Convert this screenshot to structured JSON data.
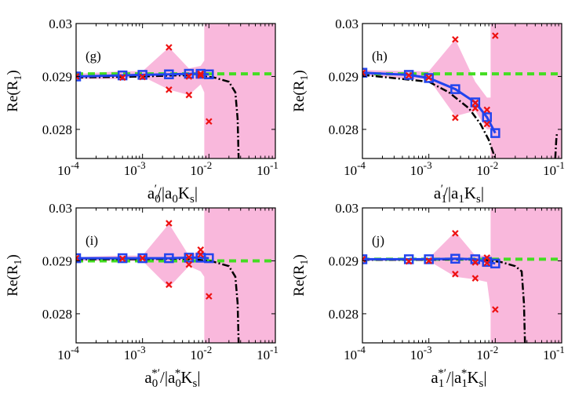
{
  "colors": {
    "band": "#f9b8dc",
    "reference": "#44dd22",
    "fit": "#2244ee",
    "samples": "#ee1111",
    "trend": "#000000"
  },
  "chart_data": [
    {
      "type": "line",
      "panel_label": "(g)",
      "xscale": "log",
      "xlim": [
        0.0001,
        0.1
      ],
      "xticks": [
        {
          "base": "10",
          "exp": "-4"
        },
        {
          "base": "10",
          "exp": "-3"
        },
        {
          "base": "10",
          "exp": "-2"
        },
        {
          "base": "10",
          "exp": "-1"
        }
      ],
      "yticks": [
        "0.03",
        "0.029",
        "0.028"
      ],
      "ytick_values": [
        0.03,
        0.029,
        0.028
      ],
      "ylim": [
        0.02745,
        0.03
      ],
      "ylabel": {
        "main": "Re(R",
        "sub": "1",
        "tail": ")"
      },
      "xlabel": {
        "numerator": "a",
        "num_sub": "0",
        "num_sup": "′",
        "denominator": "/|a",
        "den_sub": "0",
        "den_tail": "K",
        "den_tail_sub": "s",
        "closing": "|"
      },
      "reference_value": 0.02905,
      "band": {
        "x": [
          0.0001,
          0.0005,
          0.001,
          0.0025,
          0.005,
          0.0075,
          0.0085,
          0.0085,
          0.1,
          0.1,
          0.0085,
          0.0085,
          0.0075,
          0.005,
          0.0025,
          0.001,
          0.0005,
          0.0001
        ],
        "y": [
          0.02905,
          0.0291,
          0.0291,
          0.02955,
          0.02915,
          0.0292,
          0.0293,
          0.03,
          0.03,
          0.02745,
          0.02745,
          0.0287,
          0.02885,
          0.02865,
          0.02875,
          0.029,
          0.02895,
          0.02895
        ]
      },
      "series": [
        {
          "name": "fit",
          "x": [
            0.0001,
            0.0005,
            0.001,
            0.0025,
            0.005,
            0.0075,
            0.01
          ],
          "y": [
            0.029,
            0.02902,
            0.02903,
            0.02904,
            0.02905,
            0.02905,
            0.02904
          ]
        },
        {
          "name": "samples",
          "x": [
            0.0001,
            0.0005,
            0.001,
            0.0025,
            0.0025,
            0.005,
            0.005,
            0.0075,
            0.0075,
            0.01
          ],
          "y": [
            0.029,
            0.02898,
            0.02899,
            0.02955,
            0.02875,
            0.029,
            0.02865,
            0.02905,
            0.02902,
            0.02815
          ]
        },
        {
          "name": "trend",
          "x": [
            0.0001,
            0.001,
            0.003,
            0.006,
            0.012,
            0.02,
            0.025,
            0.027,
            0.028
          ],
          "y": [
            0.02898,
            0.029,
            0.02902,
            0.02902,
            0.02898,
            0.0289,
            0.0287,
            0.0282,
            0.02745
          ]
        }
      ]
    },
    {
      "type": "line",
      "panel_label": "(h)",
      "xscale": "log",
      "xlim": [
        0.0001,
        0.1
      ],
      "xticks": [
        {
          "base": "10",
          "exp": "-4"
        },
        {
          "base": "10",
          "exp": "-3"
        },
        {
          "base": "10",
          "exp": "-2"
        },
        {
          "base": "10",
          "exp": "-1"
        }
      ],
      "yticks": [
        "0.03",
        "0.029",
        "0.028"
      ],
      "ytick_values": [
        0.03,
        0.029,
        0.028
      ],
      "ylim": [
        0.02745,
        0.03
      ],
      "ylabel": {
        "main": "Re(R",
        "sub": "1",
        "tail": ")"
      },
      "xlabel": {
        "numerator": "a",
        "num_sub": "1",
        "num_sup": "′",
        "denominator": "/|a",
        "den_sub": "1",
        "den_tail": "K",
        "den_tail_sub": "s",
        "closing": "|"
      },
      "reference_value": 0.02905,
      "band": {
        "x": [
          0.0001,
          0.0005,
          0.001,
          0.0025,
          0.005,
          0.0075,
          0.0085,
          0.0085,
          0.1,
          0.1,
          0.0085,
          0.0085,
          0.0075,
          0.005,
          0.0025,
          0.001,
          0.0005,
          0.0001
        ],
        "y": [
          0.02912,
          0.0291,
          0.0291,
          0.0297,
          0.0289,
          0.0286,
          0.0286,
          0.03,
          0.03,
          0.02745,
          0.02745,
          0.028,
          0.028,
          0.02835,
          0.02825,
          0.02895,
          0.02895,
          0.02902
        ]
      },
      "series": [
        {
          "name": "fit",
          "x": [
            0.0001,
            0.0005,
            0.001,
            0.0025,
            0.005,
            0.0075,
            0.01
          ],
          "y": [
            0.02907,
            0.02903,
            0.02897,
            0.02876,
            0.02851,
            0.02823,
            0.02793
          ]
        },
        {
          "name": "samples",
          "x": [
            0.0001,
            0.0005,
            0.001,
            0.0025,
            0.0025,
            0.005,
            0.005,
            0.0075,
            0.0075,
            0.01
          ],
          "y": [
            0.02907,
            0.02902,
            0.02898,
            0.0297,
            0.02822,
            0.0285,
            0.0284,
            0.02837,
            0.0281,
            0.02977
          ]
        },
        {
          "name": "trend",
          "x": [
            0.0001,
            0.001,
            0.002,
            0.004,
            0.006,
            0.008,
            0.01
          ],
          "y": [
            0.02903,
            0.0289,
            0.0287,
            0.0284,
            0.0281,
            0.0278,
            0.02745
          ]
        },
        {
          "name": "trend-tail",
          "x": [
            0.08,
            0.083,
            0.085
          ],
          "y": [
            0.02745,
            0.0278,
            0.02793
          ]
        }
      ]
    },
    {
      "type": "line",
      "panel_label": "(i)",
      "xscale": "log",
      "xlim": [
        0.0001,
        0.1
      ],
      "xticks": [
        {
          "base": "10",
          "exp": "-4"
        },
        {
          "base": "10",
          "exp": "-3"
        },
        {
          "base": "10",
          "exp": "-2"
        },
        {
          "base": "10",
          "exp": "-1"
        }
      ],
      "yticks": [
        "0.03",
        "0.029",
        "0.028"
      ],
      "ytick_values": [
        0.03,
        0.029,
        0.028
      ],
      "ylim": [
        0.02745,
        0.03
      ],
      "ylabel": {
        "main": "Re(R",
        "sub": "1",
        "tail": ")"
      },
      "xlabel": {
        "numerator": "a",
        "num_sub": "0",
        "num_sup": "*′",
        "denominator": "/|a",
        "den_sub": "0",
        "den_sup": "*",
        "den_tail": "K",
        "den_tail_sub": "s",
        "closing": "|"
      },
      "reference_value": 0.029,
      "band": {
        "x": [
          0.0001,
          0.0005,
          0.001,
          0.0025,
          0.005,
          0.0075,
          0.0085,
          0.0085,
          0.1,
          0.1,
          0.0085,
          0.0085,
          0.0075,
          0.005,
          0.0025,
          0.001,
          0.0005,
          0.0001
        ],
        "y": [
          0.02907,
          0.0291,
          0.0291,
          0.0297,
          0.0291,
          0.0292,
          0.0292,
          0.03,
          0.03,
          0.02745,
          0.02745,
          0.0287,
          0.0288,
          0.0289,
          0.0285,
          0.029,
          0.029,
          0.029
        ]
      },
      "series": [
        {
          "name": "fit",
          "x": [
            0.0001,
            0.0005,
            0.001,
            0.0025,
            0.005,
            0.0075,
            0.01
          ],
          "y": [
            0.02905,
            0.02905,
            0.02905,
            0.02905,
            0.02906,
            0.02906,
            0.02905
          ]
        },
        {
          "name": "samples",
          "x": [
            0.0001,
            0.0005,
            0.001,
            0.0025,
            0.0025,
            0.005,
            0.005,
            0.0075,
            0.0075,
            0.01
          ],
          "y": [
            0.02905,
            0.02904,
            0.02905,
            0.02971,
            0.02855,
            0.02907,
            0.02893,
            0.02921,
            0.02912,
            0.02833
          ]
        },
        {
          "name": "trend",
          "x": [
            0.0001,
            0.001,
            0.003,
            0.006,
            0.012,
            0.02,
            0.025,
            0.027,
            0.028
          ],
          "y": [
            0.02903,
            0.02903,
            0.02904,
            0.02903,
            0.02898,
            0.0289,
            0.0287,
            0.0282,
            0.02745
          ]
        }
      ]
    },
    {
      "type": "line",
      "panel_label": "(j)",
      "xscale": "log",
      "xlim": [
        0.0001,
        0.1
      ],
      "xticks": [
        {
          "base": "10",
          "exp": "-4"
        },
        {
          "base": "10",
          "exp": "-3"
        },
        {
          "base": "10",
          "exp": "-2"
        },
        {
          "base": "10",
          "exp": "-1"
        }
      ],
      "yticks": [
        "0.03",
        "0.029",
        "0.028"
      ],
      "ytick_values": [
        0.03,
        0.029,
        0.028
      ],
      "ylim": [
        0.02745,
        0.03
      ],
      "ylabel": {
        "main": "Re(R",
        "sub": "1",
        "tail": ")"
      },
      "xlabel": {
        "numerator": "a",
        "num_sub": "1",
        "num_sup": "*′",
        "denominator": "/|a",
        "den_sub": "1",
        "den_sup": "*",
        "den_tail": "K",
        "den_tail_sub": "s",
        "closing": "|"
      },
      "reference_value": 0.02903,
      "band": {
        "x": [
          0.0001,
          0.0005,
          0.001,
          0.0025,
          0.005,
          0.0075,
          0.0085,
          0.0085,
          0.1,
          0.1,
          0.0085,
          0.0085,
          0.0075,
          0.005,
          0.0025,
          0.001,
          0.0005,
          0.0001
        ],
        "y": [
          0.02905,
          0.02905,
          0.02905,
          0.02955,
          0.0291,
          0.0291,
          0.0291,
          0.03,
          0.03,
          0.02745,
          0.02745,
          0.0281,
          0.0286,
          0.02865,
          0.0287,
          0.029,
          0.029,
          0.029
        ]
      },
      "series": [
        {
          "name": "fit",
          "x": [
            0.0001,
            0.0005,
            0.001,
            0.0025,
            0.005,
            0.0075,
            0.01
          ],
          "y": [
            0.02903,
            0.02903,
            0.02903,
            0.02904,
            0.02903,
            0.02898,
            0.02895
          ]
        },
        {
          "name": "samples",
          "x": [
            0.0001,
            0.0005,
            0.001,
            0.0025,
            0.0025,
            0.005,
            0.005,
            0.0075,
            0.0075,
            0.01
          ],
          "y": [
            0.02903,
            0.02899,
            0.029,
            0.02952,
            0.02875,
            0.02897,
            0.02867,
            0.02906,
            0.02896,
            0.02808
          ]
        },
        {
          "name": "trend",
          "x": [
            0.0001,
            0.001,
            0.003,
            0.006,
            0.012,
            0.02,
            0.025,
            0.027,
            0.028
          ],
          "y": [
            0.02902,
            0.02902,
            0.02903,
            0.02902,
            0.02898,
            0.0289,
            0.0288,
            0.0282,
            0.02745
          ]
        }
      ]
    }
  ]
}
